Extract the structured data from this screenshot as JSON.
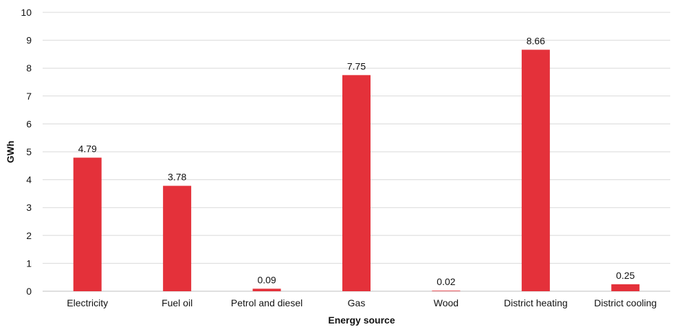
{
  "chart_data": {
    "type": "bar",
    "categories": [
      "Electricity",
      "Fuel oil",
      "Petrol and diesel",
      "Gas",
      "Wood",
      "District heating",
      "District cooling"
    ],
    "values": [
      4.79,
      3.78,
      0.09,
      7.75,
      0.02,
      8.66,
      0.25
    ],
    "data_labels": [
      "4.79",
      "3.78",
      "0.09",
      "7.75",
      "0.02",
      "8.66",
      "0.25"
    ],
    "title": "",
    "xlabel": "Energy source",
    "ylabel": "GWh",
    "ylim": [
      0,
      10
    ],
    "yticks": [
      0,
      1,
      2,
      3,
      4,
      5,
      6,
      7,
      8,
      9,
      10
    ],
    "grid": true,
    "bar_color": "#e4313a"
  }
}
